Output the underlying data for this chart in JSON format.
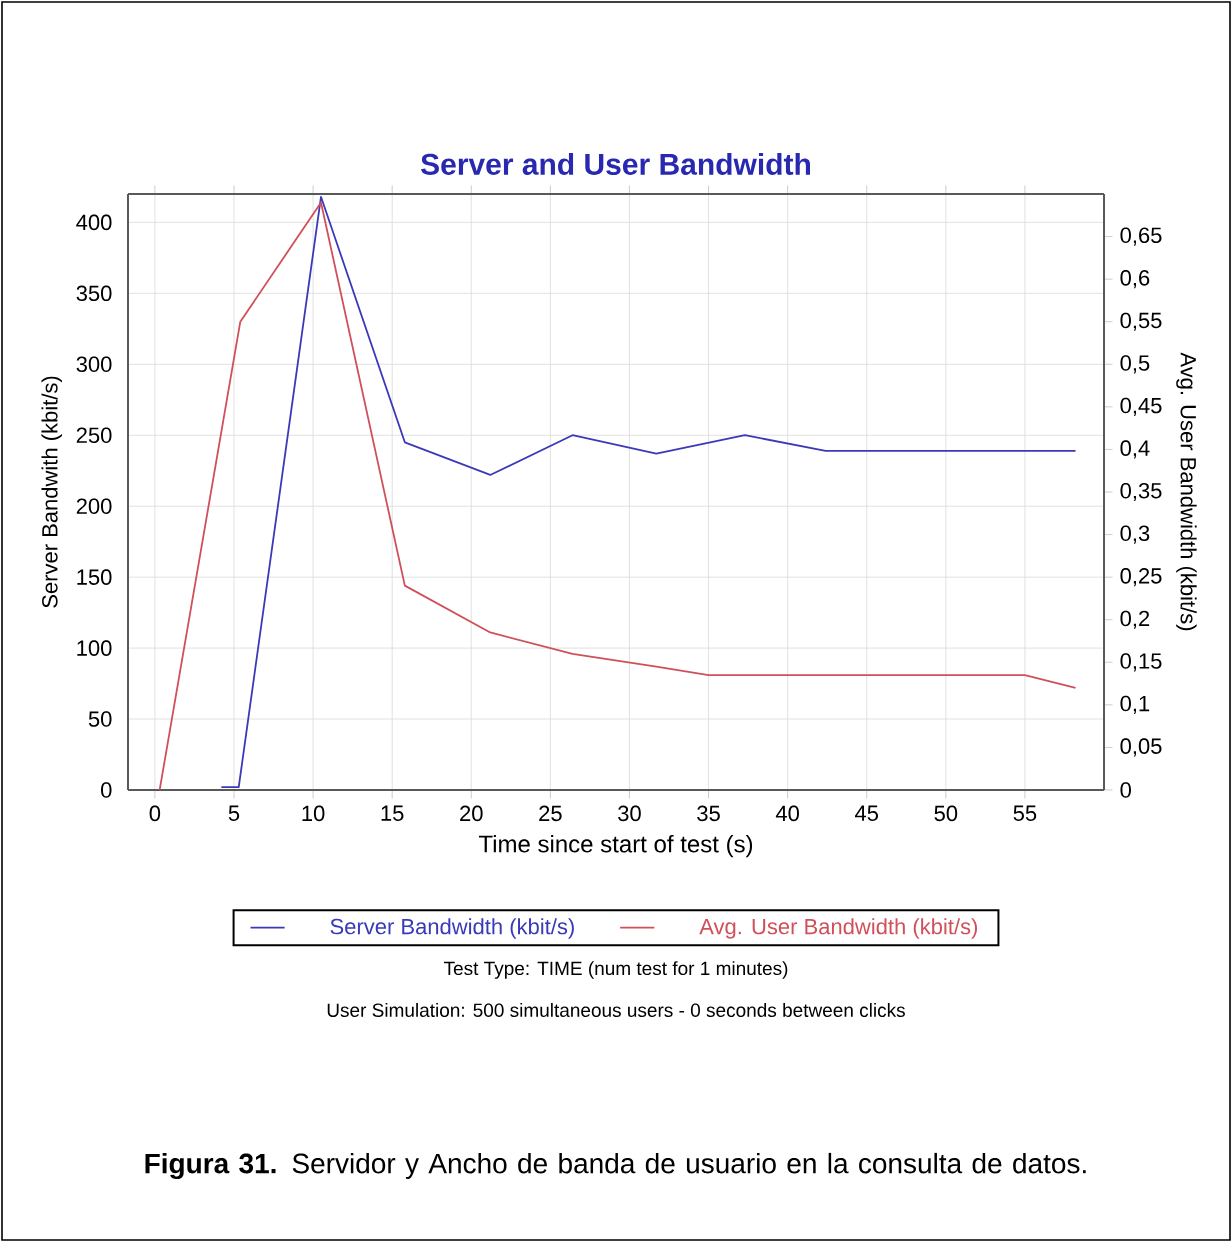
{
  "chart_data": {
    "type": "line",
    "title": "Server and User Bandwidth",
    "xlabel": "Time since start of test (s)",
    "ylabel": "Server Bandwith (kbit/s)",
    "y2label": "Avg. User Bandwidth (kbit/s)",
    "xlim": [
      -1.7,
      60
    ],
    "xticks": [
      0,
      5,
      10,
      15,
      20,
      25,
      30,
      35,
      40,
      45,
      50,
      55
    ],
    "ylim": [
      0,
      420
    ],
    "yticks": [
      0,
      50,
      100,
      150,
      200,
      250,
      300,
      350,
      400
    ],
    "y2lim": [
      0,
      0.7
    ],
    "y2ticks": [
      0,
      {
        "value": 0.05,
        "label": "0,05"
      },
      {
        "value": 0.1,
        "label": "0,1"
      },
      {
        "value": 0.15,
        "label": "0,15"
      },
      {
        "value": 0.2,
        "label": "0,2"
      },
      {
        "value": 0.25,
        "label": "0,25"
      },
      {
        "value": 0.3,
        "label": "0,3"
      },
      {
        "value": 0.35,
        "label": "0,35"
      },
      {
        "value": 0.4,
        "label": "0,4"
      },
      {
        "value": 0.45,
        "label": "0,45"
      },
      {
        "value": 0.5,
        "label": "0,5"
      },
      {
        "value": 0.55,
        "label": "0,55"
      },
      {
        "value": 0.6,
        "label": "0,6"
      },
      {
        "value": 0.65,
        "label": "0,65"
      }
    ],
    "series": [
      {
        "name": "Server Bandwidth (kbit/s)",
        "color": "#3a3ab8",
        "x": [
          4.2,
          5.3,
          10.5,
          15.8,
          21.2,
          26.4,
          31.7,
          37.3,
          42.4,
          58.2
        ],
        "values": [
          2,
          2,
          418,
          245,
          222,
          250,
          237,
          250,
          239,
          239
        ]
      },
      {
        "name": "Avg. User Bandwidth (kbit/s)",
        "color": "#d0505a",
        "axis": "y2",
        "x": [
          0.3,
          5.4,
          10.5,
          15.8,
          21.2,
          26.4,
          31.7,
          35,
          55,
          58.2
        ],
        "values": [
          0,
          0.55,
          0.69,
          0.24,
          0.185,
          0.16,
          0.145,
          0.135,
          0.135,
          0.12
        ]
      }
    ],
    "grid": true,
    "legend": "bottom",
    "marker": "none",
    "line_style": "solid",
    "annotations": [
      "Test Type: TIME (num test for 1 minutes)",
      "User Simulation: 500 simultaneous users - 0 seconds between clicks",
      "**Figura 31.** Servidor y Ancho de banda de usuario en la consulta de datos."
    ]
  }
}
